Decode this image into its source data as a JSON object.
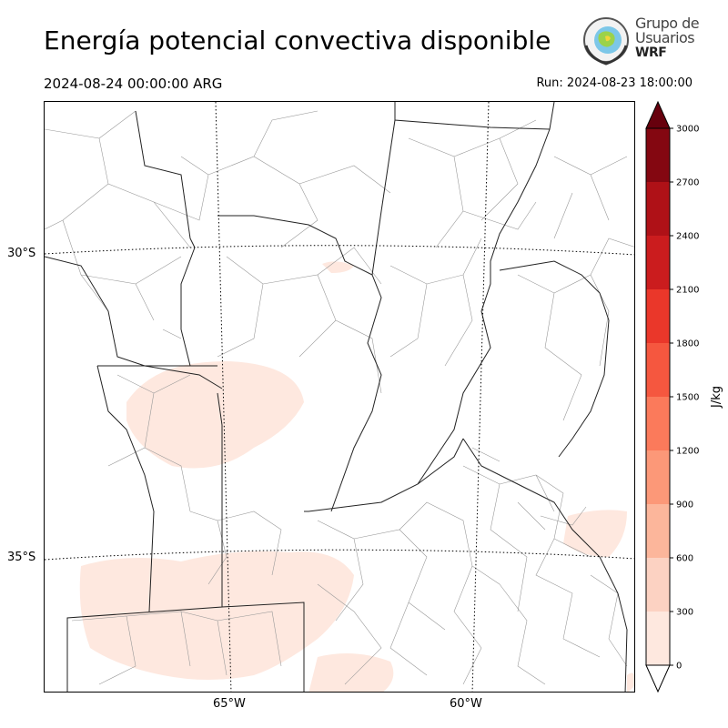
{
  "header": {
    "title": "Energía potencial convectiva disponible",
    "valid_time": "2024-08-24 00:00:00 ARG",
    "run_time": "Run: 2024-08-23 18:00:00"
  },
  "logo": {
    "line1": "Grupo de",
    "line2": "Usuarios",
    "line3": "WRF",
    "icon": "globe-wreath-icon"
  },
  "map": {
    "lat_labels": [
      "30°S",
      "35°S"
    ],
    "lon_labels": [
      "65°W",
      "60°W"
    ]
  },
  "colorbar": {
    "unit_label": "J/kg",
    "ticks": [
      "0",
      "300",
      "600",
      "900",
      "1200",
      "1500",
      "1800",
      "2100",
      "2400",
      "2700",
      "3000"
    ],
    "colors": [
      "#fee8df",
      "#fcd2c2",
      "#fcb69b",
      "#fc9878",
      "#fb7a5b",
      "#f5573f",
      "#ea372a",
      "#cb1c1e",
      "#af1117",
      "#840711"
    ],
    "over_color": "#67000d",
    "under_color": "#ffffff"
  }
}
